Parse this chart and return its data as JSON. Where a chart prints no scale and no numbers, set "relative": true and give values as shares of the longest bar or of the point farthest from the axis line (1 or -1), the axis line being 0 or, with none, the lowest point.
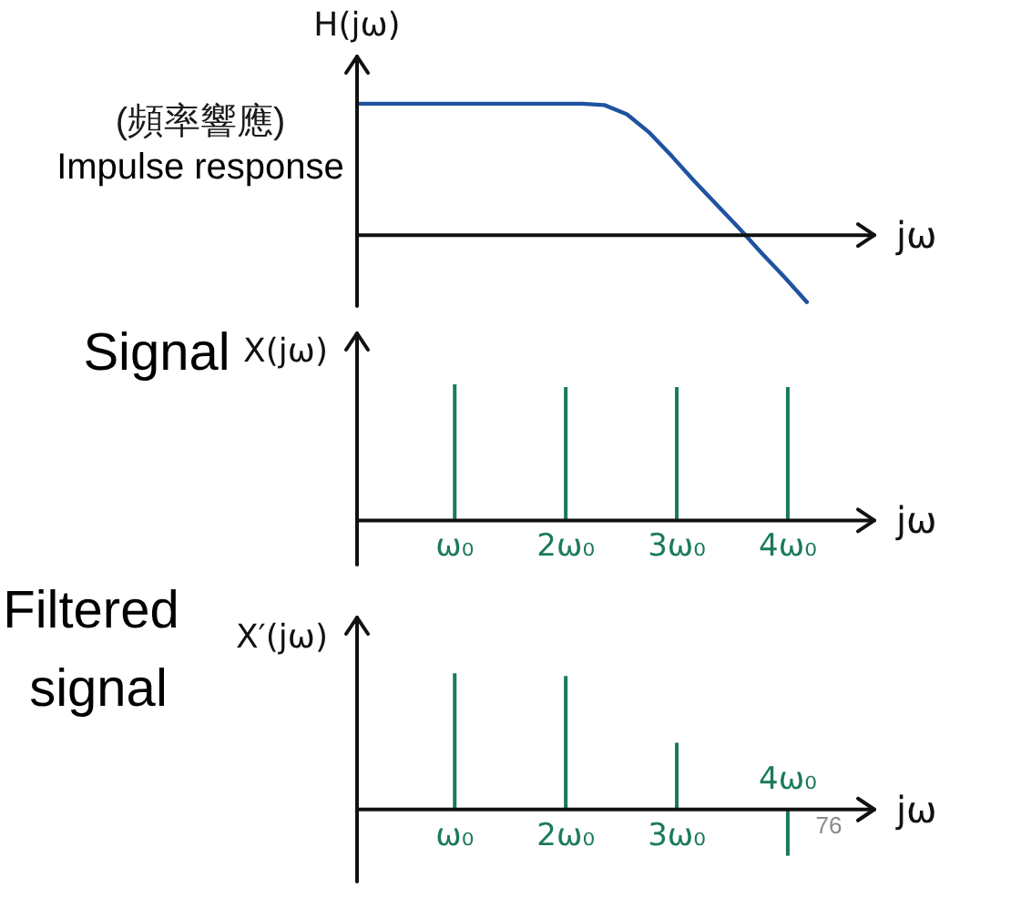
{
  "chart_data": [
    {
      "type": "line",
      "title": "Impulse response",
      "subtitle": "(頻率響應)",
      "xlabel": "jω",
      "ylabel": "H(jω)",
      "relative": true,
      "marker": "none",
      "tick_labels": false,
      "categories": [
        null,
        null,
        null,
        null,
        null,
        null,
        null,
        null,
        null,
        null,
        null,
        null,
        null,
        null,
        null,
        null,
        null,
        null,
        null,
        null,
        null,
        null,
        null,
        null
      ],
      "series": [
        {
          "color": "#1f53a0",
          "values": [
            1,
            1,
            1,
            1,
            1,
            1,
            1,
            1,
            1,
            1,
            1,
            0.99,
            0.92,
            0.78,
            0.6,
            0.41,
            0.23,
            0.05,
            -0.14,
            -0.32,
            -0.51,
            null,
            null,
            null
          ]
        }
      ]
    },
    {
      "type": "bar",
      "title": "Signal",
      "xlabel": "jω",
      "ylabel": "X(jω)",
      "relative": true,
      "tick_labels": "x",
      "xlim": [
        0.12,
        4.78
      ],
      "xticks": [
        {
          "value": 1,
          "label": "ω₀"
        },
        {
          "value": 2,
          "label": "2ω₀"
        },
        {
          "value": 3,
          "label": "3ω₀"
        },
        {
          "value": 4,
          "label": "4ω₀"
        }
      ],
      "x": [
        1,
        2,
        3,
        4
      ],
      "values": [
        1,
        0.98,
        0.98,
        0.98
      ],
      "color": "#1a7a5c"
    },
    {
      "type": "bar",
      "title": "Filtered signal",
      "xlabel": "jω",
      "ylabel": "X′(jω)",
      "relative": true,
      "tick_labels": "x",
      "xlim": [
        0.12,
        4.78
      ],
      "xticks": [
        {
          "value": 1,
          "label": "ω₀"
        },
        {
          "value": 2,
          "label": "2ω₀"
        },
        {
          "value": 3,
          "label": "3ω₀"
        }
      ],
      "x": [
        1,
        2,
        3,
        4
      ],
      "values": [
        1,
        0.98,
        0.49,
        -0.34
      ],
      "color": "#1a7a5c",
      "annotations": [
        {
          "text": "4ω₀",
          "x": 4,
          "y": 0
        },
        "76"
      ]
    }
  ]
}
